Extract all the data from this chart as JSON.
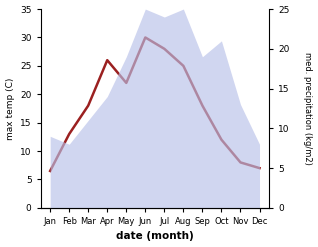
{
  "months": [
    "Jan",
    "Feb",
    "Mar",
    "Apr",
    "May",
    "Jun",
    "Jul",
    "Aug",
    "Sep",
    "Oct",
    "Nov",
    "Dec"
  ],
  "max_temp": [
    6.5,
    13.0,
    18.0,
    26.0,
    22.0,
    30.0,
    28.0,
    25.0,
    18.0,
    12.0,
    8.0,
    7.0
  ],
  "precipitation": [
    9,
    8,
    11,
    14,
    19,
    25,
    24,
    25,
    19,
    21,
    13,
    8
  ],
  "temp_ylim": [
    0,
    35
  ],
  "precip_ylim": [
    0,
    25
  ],
  "temp_yticks": [
    0,
    5,
    10,
    15,
    20,
    25,
    30,
    35
  ],
  "precip_yticks": [
    0,
    5,
    10,
    15,
    20,
    25
  ],
  "xlabel": "date (month)",
  "ylabel_left": "max temp (C)",
  "ylabel_right": "med. precipitation (kg/m2)",
  "line_color": "#9B2020",
  "fill_color": "#B8C0E8",
  "fill_alpha": 0.65,
  "line_width": 1.8
}
